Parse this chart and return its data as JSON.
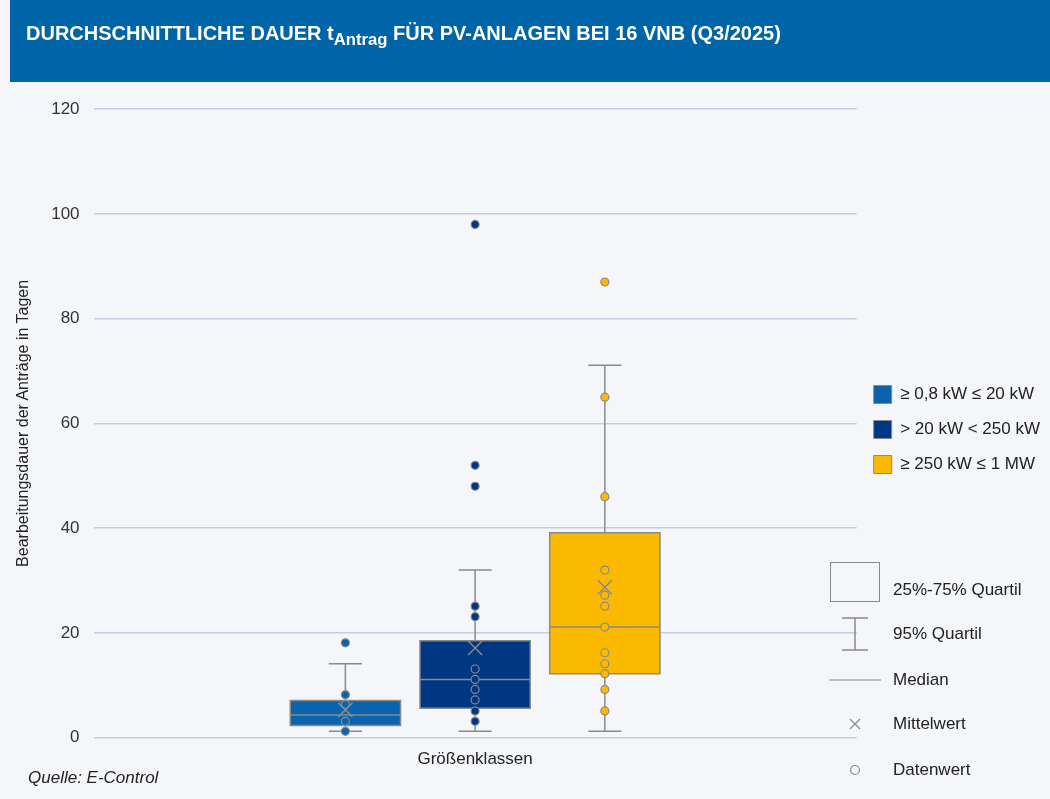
{
  "chart_data": {
    "type": "box",
    "title": "DURCHSCHNITTLICHE DAUER t$_{Antrag}$ FÜR PV-ANLAGEN BEI 16 VNB (Q3/2025)",
    "xlabel": "Größenklassen",
    "ylabel": "Bearbeitungsdauer der Anträge in Tagen",
    "categories": [
      null
    ],
    "series": [
      {
        "name": "≥ 0,8 kW ≤ 20 kW",
        "color": "#0a64ad",
        "boxes": [
          {
            "low": 1.2,
            "q1": 2.3,
            "median": 4.3,
            "q3": 7.1,
            "high": 14.1,
            "mean": 5.3,
            "outliers": [
              18.1,
              8.2,
              6.3,
              3.1,
              1.2
            ]
          }
        ]
      },
      {
        "name": "> 20 kW < 250 kW",
        "color": "#003782",
        "boxes": [
          {
            "low": 1.2,
            "q1": 5.6,
            "median": 11.1,
            "q3": 18.5,
            "high": 32,
            "mean": 17.1,
            "outliers": [
              98,
              52,
              48,
              25.1,
              23.1,
              13.1,
              11.1,
              9.2,
              7.2,
              5.1,
              3.1
            ]
          }
        ]
      },
      {
        "name": "≥ 250 kW ≤ 1 MW",
        "color": "#fbb900",
        "boxes": [
          {
            "low": 1.2,
            "q1": 12.2,
            "median": 21.1,
            "q3": 39.1,
            "high": 71.1,
            "mean": 28.7,
            "outliers": [
              87,
              65,
              46,
              32,
              27.2,
              25.1,
              21.1,
              16.2,
              14.1,
              12.2,
              9.2,
              5.1
            ]
          }
        ]
      }
    ],
    "ylim": [
      0,
      120
    ],
    "yticks": [
      0,
      20,
      40,
      60,
      80,
      100,
      120
    ],
    "grid": "y",
    "legend": "right",
    "annotations": [
      "Quelle: E-Control",
      "25%-75% Quartil",
      "95% Quartil",
      "Median",
      "Mittelwert",
      "Datenwert"
    ]
  }
}
